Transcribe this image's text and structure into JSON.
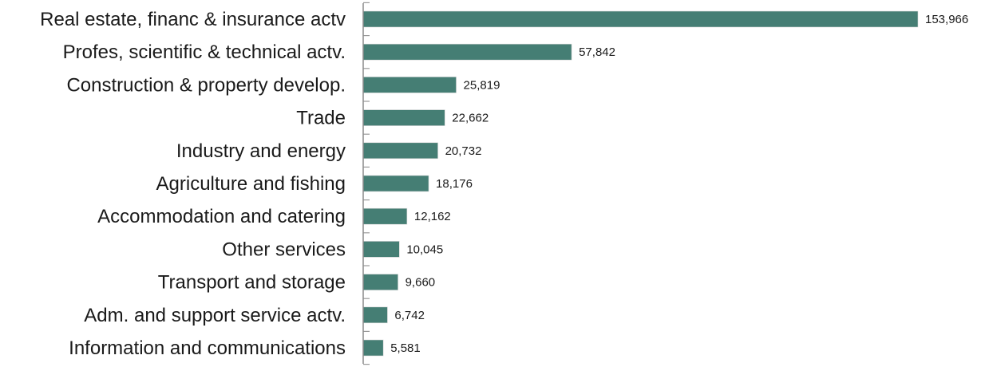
{
  "chart_data": {
    "type": "bar",
    "orientation": "horizontal",
    "title": "",
    "xlabel": "",
    "ylabel": "",
    "categories": [
      "Real estate, financ & insurance actv",
      "Profes, scientific & technical actv.",
      "Construction & property develop.",
      "Trade",
      "Industry and energy",
      "Agriculture and fishing",
      "Accommodation and catering",
      "Other services",
      "Transport and storage",
      "Adm. and support service actv.",
      "Information and communications"
    ],
    "values": [
      153966,
      57842,
      25819,
      22662,
      20732,
      18176,
      12162,
      10045,
      9660,
      6742,
      5581
    ],
    "value_labels": [
      "153,966",
      "57,842",
      "25,819",
      "22,662",
      "20,732",
      "18,176",
      "12,162",
      "10,045",
      "9,660",
      "6,742",
      "5,581"
    ],
    "xlim": [
      0,
      153966
    ],
    "grid": false,
    "legend": "none",
    "colors": {
      "bar": "#457e74",
      "axis": "#8c8c8c",
      "text": "#1a1a1a"
    }
  }
}
